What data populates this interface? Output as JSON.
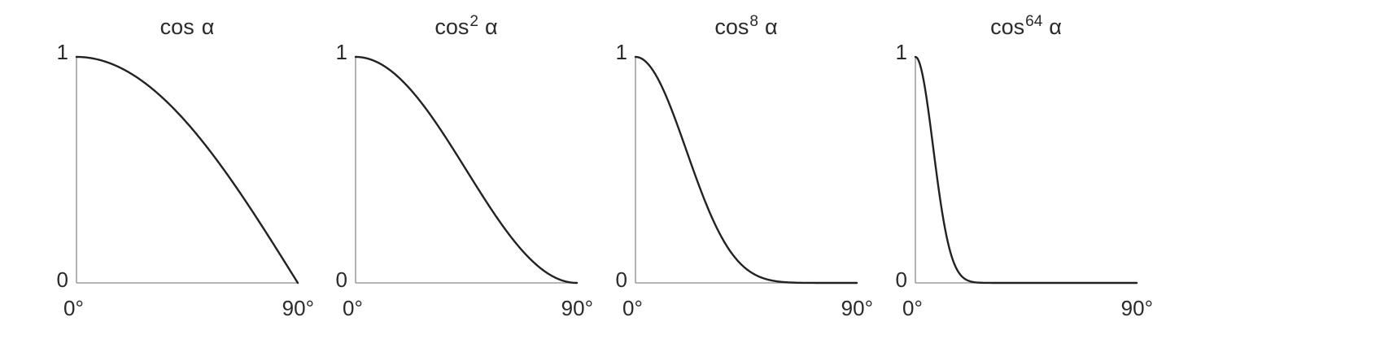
{
  "chart_data": [
    {
      "type": "line",
      "title": {
        "base": "cos",
        "exponent": "",
        "symbol": "α"
      },
      "exponent_value": 1,
      "x_range_deg": [
        0,
        90
      ],
      "ylim": [
        0,
        1
      ],
      "x_tick_labels": [
        "0°",
        "90°"
      ],
      "y_tick_labels": [
        "0",
        "1"
      ],
      "series": [
        {
          "x": [
            0,
            15,
            30,
            45,
            60,
            75,
            90
          ],
          "y": [
            1.0,
            0.966,
            0.866,
            0.707,
            0.5,
            0.259,
            0.0
          ]
        }
      ]
    },
    {
      "type": "line",
      "title": {
        "base": "cos",
        "exponent": "2",
        "symbol": "α"
      },
      "exponent_value": 2,
      "x_range_deg": [
        0,
        90
      ],
      "ylim": [
        0,
        1
      ],
      "x_tick_labels": [
        "0°",
        "90°"
      ],
      "y_tick_labels": [
        "0",
        "1"
      ],
      "series": [
        {
          "x": [
            0,
            15,
            30,
            45,
            60,
            75,
            90
          ],
          "y": [
            1.0,
            0.933,
            0.75,
            0.5,
            0.25,
            0.067,
            0.0
          ]
        }
      ]
    },
    {
      "type": "line",
      "title": {
        "base": "cos",
        "exponent": "8",
        "symbol": "α"
      },
      "exponent_value": 8,
      "x_range_deg": [
        0,
        90
      ],
      "ylim": [
        0,
        1
      ],
      "x_tick_labels": [
        "0°",
        "90°"
      ],
      "y_tick_labels": [
        "0",
        "1"
      ],
      "series": [
        {
          "x": [
            0,
            15,
            30,
            45,
            60,
            75,
            90
          ],
          "y": [
            1.0,
            0.758,
            0.316,
            0.0625,
            0.0039,
            2e-05,
            0.0
          ]
        }
      ]
    },
    {
      "type": "line",
      "title": {
        "base": "cos",
        "exponent": "64",
        "symbol": "α"
      },
      "exponent_value": 64,
      "x_range_deg": [
        0,
        90
      ],
      "ylim": [
        0,
        1
      ],
      "x_tick_labels": [
        "0°",
        "90°"
      ],
      "y_tick_labels": [
        "0",
        "1"
      ],
      "series": [
        {
          "x": [
            0,
            5,
            10,
            15,
            20,
            30,
            45,
            90
          ],
          "y": [
            1.0,
            0.784,
            0.378,
            0.109,
            0.019,
            0.0,
            0.0,
            0.0
          ]
        }
      ]
    }
  ]
}
